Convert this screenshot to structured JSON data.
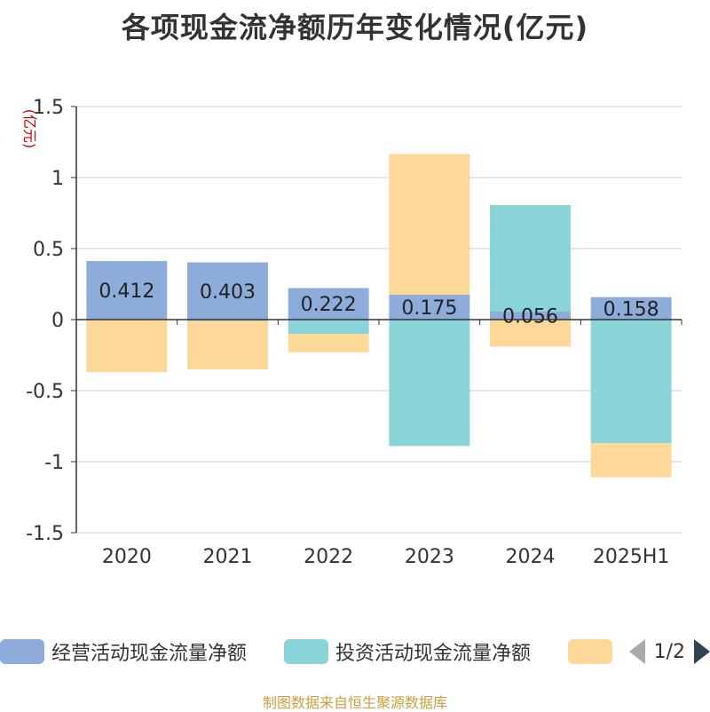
{
  "title": "各项现金流净额历年变化情况(亿元)",
  "source": "制图数据来自恒生聚源数据库",
  "legend_pager": "1/2",
  "chart_data": {
    "type": "bar",
    "stacked": true,
    "title": "各项现金流净额历年变化情况(亿元)",
    "xlabel": "",
    "ylabel": "(亿元)",
    "ylim": [
      -1.5,
      1.5
    ],
    "yticks": [
      "1.5",
      "1",
      "0.5",
      "0",
      "-0.5",
      "-1",
      "-1.5"
    ],
    "ytick_values": [
      1.5,
      1,
      0.5,
      0,
      -0.5,
      -1,
      -1.5
    ],
    "grid": true,
    "legend_position": "bottom",
    "categories": [
      "2020",
      "2021",
      "2022",
      "2023",
      "2024",
      "2025H1"
    ],
    "series": [
      {
        "name": "经营活动现金流量净额",
        "color": "#8eacd9",
        "values": [
          0.412,
          0.403,
          0.222,
          0.175,
          0.056,
          0.158
        ],
        "labels": [
          "0.412",
          "0.403",
          "0.222",
          "0.175",
          "0.056",
          "0.158"
        ]
      },
      {
        "name": "投资活动现金流量净额",
        "color": "#88d4d8",
        "values": [
          0.0,
          -0.01,
          -0.1,
          -0.89,
          0.75,
          -0.87
        ]
      },
      {
        "name": "",
        "color": "#fdd898",
        "values": [
          -0.37,
          -0.34,
          -0.13,
          0.99,
          -0.19,
          -0.24
        ]
      }
    ]
  }
}
